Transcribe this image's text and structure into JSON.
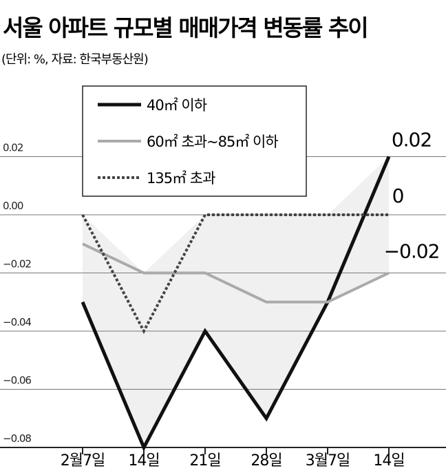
{
  "chart_data": {
    "type": "line",
    "title": "서울 아파트 규모별 매매가격 변동률 추이",
    "subtitle": "(단위: %, 자료: 한국부동산원)",
    "categories": [
      "2월7일",
      "14일",
      "21일",
      "28일",
      "3월7일",
      "14일"
    ],
    "series": [
      {
        "name": "40㎡ 이하",
        "color": "#111111",
        "values": [
          -0.03,
          -0.08,
          -0.04,
          -0.07,
          -0.03,
          0.02
        ]
      },
      {
        "name": "60㎡ 초과~85㎡ 이하",
        "color": "#aaaaaa",
        "values": [
          -0.01,
          -0.02,
          -0.02,
          -0.03,
          -0.03,
          -0.02
        ],
        "value_labels": [
          null,
          null,
          null,
          null,
          null,
          "−0.02"
        ]
      },
      {
        "name": "135㎡ 초과",
        "color": "#444444",
        "dash": "4 3",
        "values": [
          0,
          -0.04,
          0,
          0,
          0,
          0
        ]
      }
    ],
    "ylim": [
      -0.08,
      0.04
    ],
    "yticks": [
      0.02,
      {
        "value": 0,
        "label": "0.00"
      },
      {
        "value": -0.02,
        "label": "−0.02"
      },
      {
        "value": -0.04,
        "label": "−0.04"
      },
      {
        "value": -0.06,
        "label": "−0.06"
      },
      {
        "value": -0.08,
        "label": "−0.08"
      }
    ],
    "grid": true
  }
}
